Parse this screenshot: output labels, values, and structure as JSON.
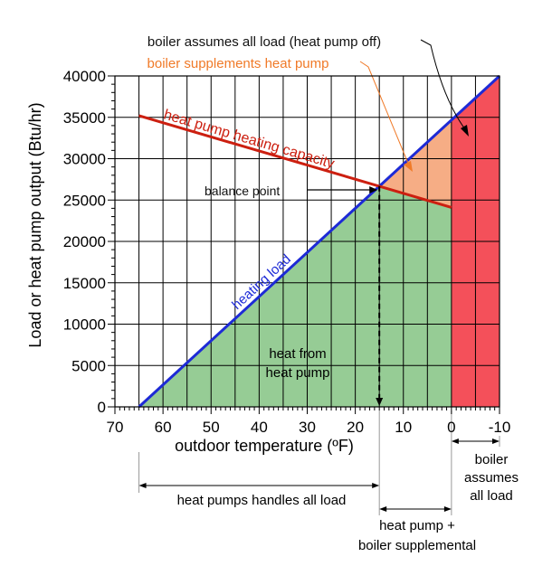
{
  "chart_data": {
    "type": "line",
    "title": "",
    "xlabel": "outdoor temperature (ºF)",
    "ylabel": "Load or heat pump output (Btu/hr)",
    "xlim": [
      70,
      -10
    ],
    "ylim": [
      0,
      40000
    ],
    "x_ticks": [
      70,
      60,
      50,
      40,
      30,
      20,
      10,
      0,
      -10
    ],
    "x_tick_labels": [
      "70",
      "60",
      "50",
      "40",
      "30",
      "20",
      "10",
      "0",
      "-10"
    ],
    "y_ticks": [
      0,
      5000,
      10000,
      15000,
      20000,
      25000,
      30000,
      35000,
      40000
    ],
    "y_tick_labels": [
      "0",
      "5000",
      "10000",
      "15000",
      "20000",
      "25000",
      "30000",
      "35000",
      "40000"
    ],
    "grid": true,
    "series": [
      {
        "name": "heating load",
        "color": "#1d2ad6",
        "x": [
          65,
          -10
        ],
        "y": [
          0,
          40000
        ]
      },
      {
        "name": "heat pump heating capacity",
        "color": "#cc1f10",
        "x": [
          65,
          0
        ],
        "y": [
          35200,
          24100
        ]
      }
    ],
    "balance_point": {
      "x": 15,
      "y": 26700
    },
    "regions": [
      {
        "label": "heat from heat pump",
        "color": "#96cc95"
      },
      {
        "label": "boiler supplements heat pump",
        "color": "#f6ad85"
      },
      {
        "label": "boiler assumes all load (heat pump off)",
        "color": "#f4505a"
      }
    ],
    "annotations": {
      "boiler_all": "boiler assumes all load (heat pump off)",
      "boiler_supplements": "boiler supplements heat pump",
      "balance_point": "balance point",
      "heat_from_line1": "heat from",
      "heat_from_line2": "heat pump",
      "heating_load": "heating load",
      "hp_capacity": "heat pump heating capacity"
    },
    "ranges": [
      {
        "from": 65,
        "to": 15,
        "lines": [
          "heat pumps handles all load"
        ]
      },
      {
        "from": 15,
        "to": 0,
        "lines": [
          "heat pump +",
          "boiler supplemental"
        ]
      },
      {
        "from": 0,
        "to": -10,
        "lines": [
          "boiler",
          "assumes",
          "all load"
        ]
      }
    ],
    "colors": {
      "annotation_black": "#111111",
      "annotation_orange": "#f07a28",
      "grid": "#000000"
    }
  }
}
